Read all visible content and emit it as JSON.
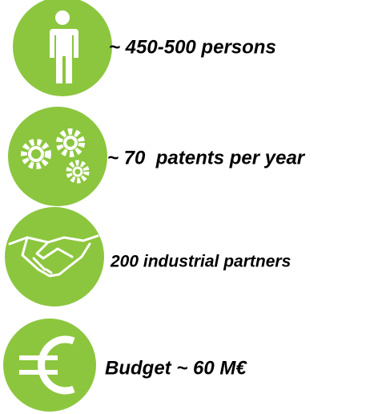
{
  "items": [
    {
      "label": "~ 450-500 persons"
    },
    {
      "label": "~ 70  patents per year"
    },
    {
      "label": "200 industrial partners"
    },
    {
      "label": "Budget ~ 60 M€"
    }
  ]
}
